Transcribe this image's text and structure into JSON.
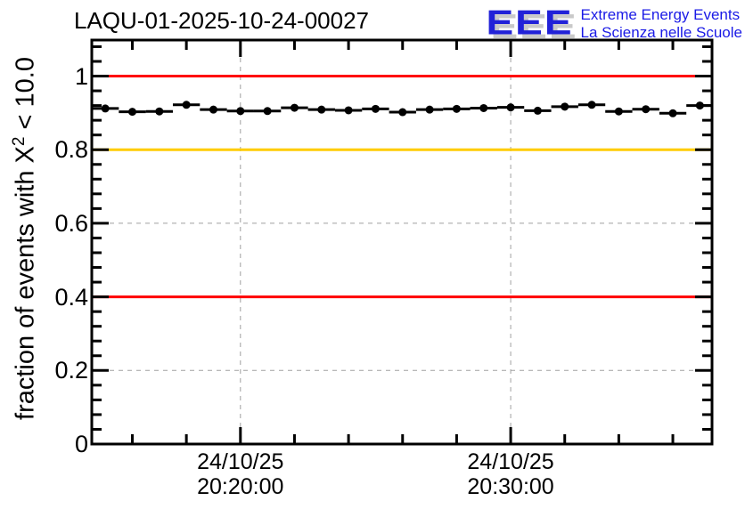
{
  "header": {
    "title": "LAQU-01-2025-10-24-00027"
  },
  "logo": {
    "acronym": "EEE",
    "line1": "Extreme Energy Events",
    "line2": "La Scienza nelle Scuole",
    "text_color": "#1a1ae6",
    "acronym_color": "#2121d8",
    "shadow_color": "#c9c9c9"
  },
  "chart_data": {
    "type": "line",
    "title": "LAQU-01-2025-10-24-00027",
    "ylabel": "fraction of events with X² < 10.0",
    "ylabel_pre": "fraction of events with X",
    "ylabel_sup": "2",
    "ylabel_post": " < 10.0",
    "xlabel": "",
    "ylim": [
      0,
      1.098
    ],
    "grid": true,
    "grid_color": "#a0a0a0",
    "frame_color": "#000000",
    "x_time_range": [
      "20:14:30",
      "20:37:27"
    ],
    "x_minor_interval_s": 120,
    "x_major_interval_s": 600,
    "y_minor_interval": 0.04,
    "y_ticks": [
      0,
      0.2,
      0.4,
      0.6,
      0.8,
      1
    ],
    "y_tick_labels": [
      "0",
      "0.2",
      "0.4",
      "0.6",
      "0.8",
      "1"
    ],
    "x_major_ticks": [
      {
        "date": "24/10/25",
        "time": "20:20:00"
      },
      {
        "date": "24/10/25",
        "time": "20:30:00"
      }
    ],
    "reference_lines": [
      {
        "y": 1.0,
        "color": "#ff0000"
      },
      {
        "y": 0.8,
        "color": "#ffcc00"
      },
      {
        "y": 0.4,
        "color": "#ff0000"
      }
    ],
    "series": [
      {
        "name": "fraction of events with chi2 < 10.0",
        "marker": "filled-circle",
        "color": "#000000",
        "x_bin_halfwidth_s": 30,
        "points": [
          {
            "time": "20:15:00",
            "value": 0.912
          },
          {
            "time": "20:16:00",
            "value": 0.903
          },
          {
            "time": "20:17:00",
            "value": 0.904
          },
          {
            "time": "20:18:00",
            "value": 0.922
          },
          {
            "time": "20:19:00",
            "value": 0.909
          },
          {
            "time": "20:20:00",
            "value": 0.905
          },
          {
            "time": "20:21:00",
            "value": 0.905
          },
          {
            "time": "20:22:00",
            "value": 0.914
          },
          {
            "time": "20:23:00",
            "value": 0.909
          },
          {
            "time": "20:24:00",
            "value": 0.907
          },
          {
            "time": "20:25:00",
            "value": 0.911
          },
          {
            "time": "20:26:00",
            "value": 0.902
          },
          {
            "time": "20:27:00",
            "value": 0.909
          },
          {
            "time": "20:28:00",
            "value": 0.911
          },
          {
            "time": "20:29:00",
            "value": 0.913
          },
          {
            "time": "20:30:00",
            "value": 0.915
          },
          {
            "time": "20:31:00",
            "value": 0.906
          },
          {
            "time": "20:32:00",
            "value": 0.917
          },
          {
            "time": "20:33:00",
            "value": 0.922
          },
          {
            "time": "20:34:00",
            "value": 0.904
          },
          {
            "time": "20:35:00",
            "value": 0.91
          },
          {
            "time": "20:36:00",
            "value": 0.899
          },
          {
            "time": "20:37:00",
            "value": 0.92
          }
        ]
      }
    ]
  }
}
